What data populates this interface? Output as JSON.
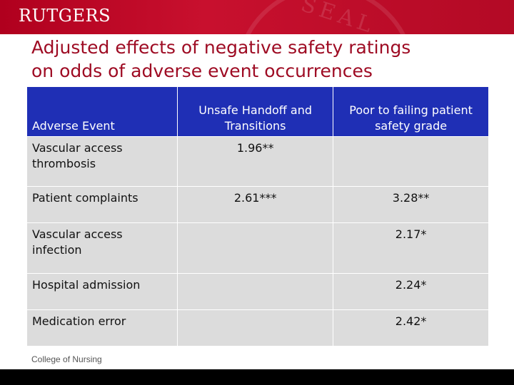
{
  "header": {
    "logo_text": "RUTGERS",
    "watermark_text": "SEAL"
  },
  "slide": {
    "title_line1": "Adjusted effects of negative safety ratings",
    "title_line2": "on odds of adverse event occurrences"
  },
  "table": {
    "headers": [
      "Adverse Event",
      "Unsafe Handoff and Transitions",
      "Poor to failing patient safety grade"
    ],
    "rows": [
      {
        "event": "Vascular access thrombosis",
        "handoff": "1.96**",
        "grade": ""
      },
      {
        "event": "Patient complaints",
        "handoff": "2.61***",
        "grade": "3.28**"
      },
      {
        "event": "Vascular access infection",
        "handoff": "",
        "grade": "2.17*"
      },
      {
        "event": "Hospital admission",
        "handoff": "",
        "grade": "2.24*"
      },
      {
        "event": "Medication error",
        "handoff": "",
        "grade": "2.42*"
      }
    ]
  },
  "footer": {
    "text": "College of Nursing"
  },
  "colors": {
    "brand_red": "#c8102e",
    "title_red": "#9e0b23",
    "header_blue": "#1f2fb5",
    "cell_gray": "#dcdcdc"
  }
}
